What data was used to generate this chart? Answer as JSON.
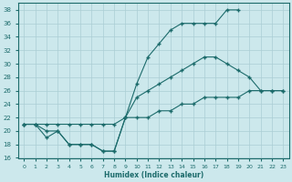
{
  "xlabel": "Humidex (Indice chaleur)",
  "bg_color": "#cce8ec",
  "line_color": "#1c6b6b",
  "grid_color": "#aacdd4",
  "xlim": [
    -0.5,
    23.5
  ],
  "ylim": [
    16,
    39
  ],
  "yticks": [
    16,
    18,
    20,
    22,
    24,
    26,
    28,
    30,
    32,
    34,
    36,
    38
  ],
  "xticks": [
    0,
    1,
    2,
    3,
    4,
    5,
    6,
    7,
    8,
    9,
    10,
    11,
    12,
    13,
    14,
    15,
    16,
    17,
    18,
    19,
    20,
    21,
    22,
    23
  ],
  "line1_x": [
    0,
    1,
    2,
    3,
    4,
    5,
    6,
    7,
    8,
    9,
    10,
    11,
    12,
    13,
    14,
    15,
    16,
    17,
    18,
    19
  ],
  "line1_y": [
    21,
    21,
    20,
    20,
    18,
    18,
    18,
    17,
    17,
    22,
    27,
    31,
    33,
    35,
    36,
    36,
    36,
    36,
    38,
    38
  ],
  "line2_x": [
    0,
    1,
    2,
    3,
    4,
    5,
    6,
    7,
    8,
    9,
    10,
    11,
    12,
    13,
    14,
    15,
    16,
    17,
    18,
    19,
    20,
    21,
    22,
    23
  ],
  "line2_y": [
    21,
    21,
    19,
    20,
    18,
    18,
    18,
    17,
    17,
    22,
    25,
    26,
    27,
    28,
    29,
    30,
    31,
    31,
    30,
    29,
    28,
    26,
    26,
    26
  ],
  "line3_x": [
    0,
    1,
    2,
    3,
    4,
    5,
    6,
    7,
    8,
    9,
    10,
    11,
    12,
    13,
    14,
    15,
    16,
    17,
    18,
    19,
    20,
    21,
    22,
    23
  ],
  "line3_y": [
    21,
    21,
    21,
    21,
    21,
    21,
    21,
    21,
    21,
    22,
    22,
    22,
    23,
    23,
    24,
    24,
    25,
    25,
    25,
    25,
    26,
    26,
    26,
    26
  ]
}
